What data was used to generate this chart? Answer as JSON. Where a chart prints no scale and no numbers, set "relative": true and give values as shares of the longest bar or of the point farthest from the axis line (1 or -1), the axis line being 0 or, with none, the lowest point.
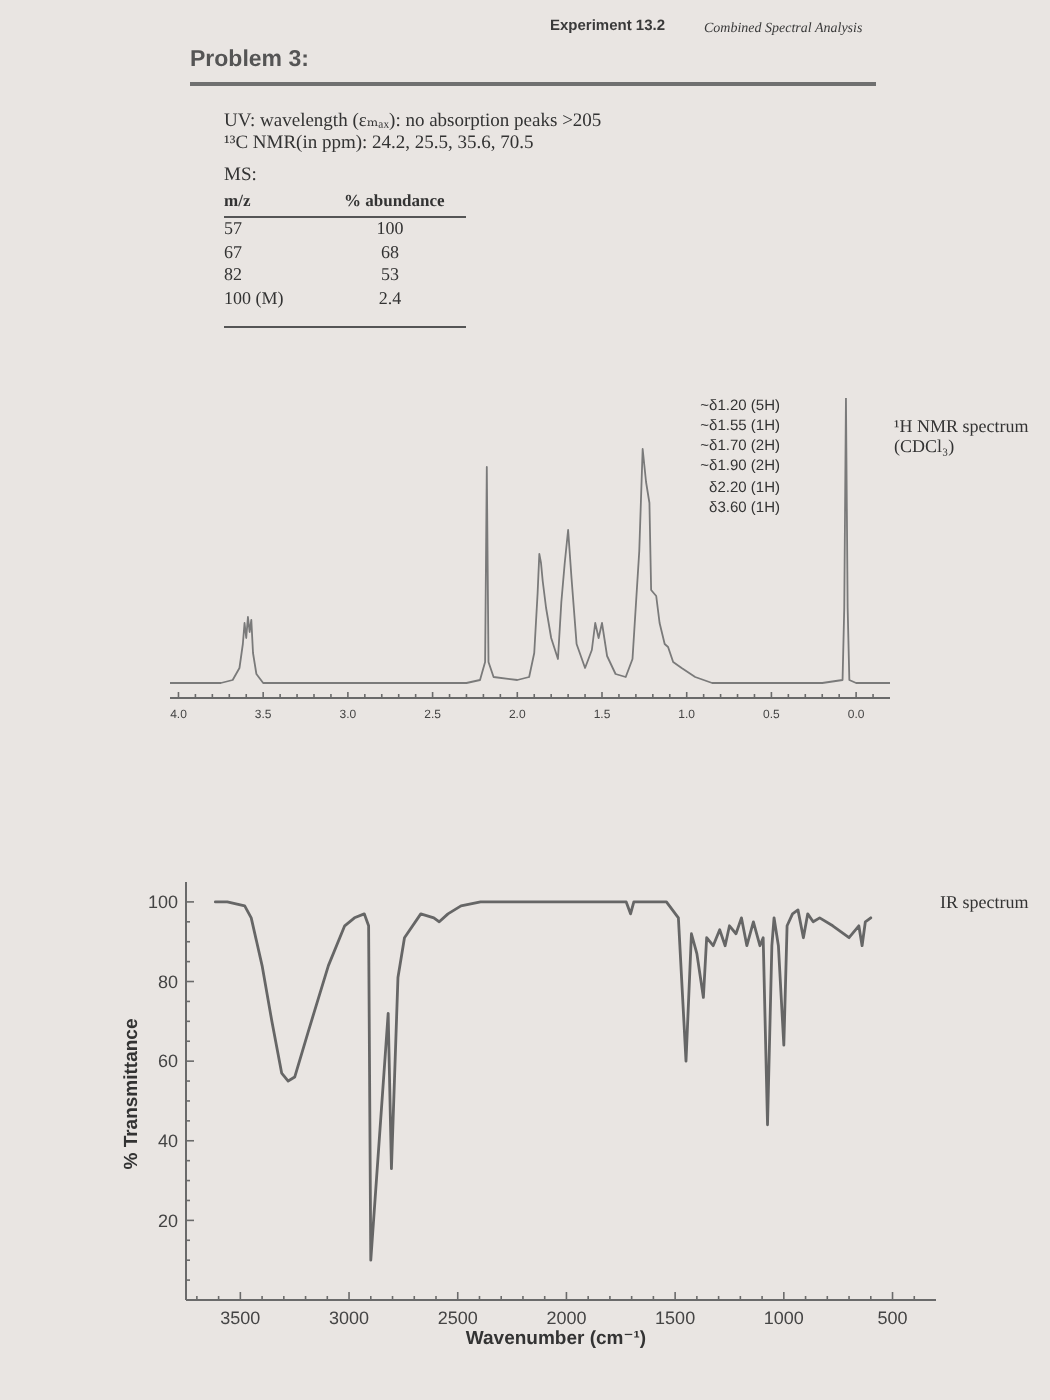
{
  "chart_data": [
    {
      "type": "other",
      "title": "Problem 3:",
      "annotations": [
        "Experiment 13.2",
        "Combined Spectral Analysis",
        "UV: wavelength (εₘₐₓ): no absorption peaks >205",
        "¹³C NMR(in ppm): 24.2, 25.5, 35.6, 70.5"
      ]
    },
    {
      "type": "other",
      "title": "MS:",
      "xlabel": "m/z",
      "ylabel": "% abundance",
      "categories": [
        "57",
        "67",
        "82",
        "100 (M)"
      ],
      "values": [
        100,
        68,
        53,
        2.4
      ],
      "data_labels": true
    },
    {
      "type": "line",
      "relative": true,
      "color": "#7a7a7a",
      "x": [
        4.05,
        3.75,
        3.68,
        3.64,
        3.62,
        3.61,
        3.6,
        3.59,
        3.58,
        3.57,
        3.56,
        3.54,
        3.5,
        3.4,
        2.3,
        2.22,
        2.19,
        2.18,
        2.17,
        2.14,
        2.0,
        1.93,
        1.9,
        1.88,
        1.87,
        1.86,
        1.85,
        1.83,
        1.8,
        1.76,
        1.74,
        1.72,
        1.7,
        1.69,
        1.68,
        1.65,
        1.6,
        1.56,
        1.54,
        1.52,
        1.5,
        1.47,
        1.42,
        1.36,
        1.32,
        1.28,
        1.26,
        1.24,
        1.22,
        1.21,
        1.18,
        1.16,
        1.13,
        1.11,
        1.08,
        1.03,
        0.95,
        0.85,
        0.2,
        0.08,
        0.07,
        0.06,
        0.05,
        0.04,
        0,
        -0.2
      ],
      "values": [
        0.05,
        0.05,
        0.06,
        0.1,
        0.18,
        0.25,
        0.2,
        0.27,
        0.22,
        0.26,
        0.15,
        0.08,
        0.05,
        0.05,
        0.05,
        0.06,
        0.12,
        0.77,
        0.12,
        0.07,
        0.06,
        0.07,
        0.15,
        0.35,
        0.48,
        0.45,
        0.39,
        0.3,
        0.2,
        0.13,
        0.32,
        0.45,
        0.56,
        0.48,
        0.4,
        0.18,
        0.1,
        0.16,
        0.25,
        0.2,
        0.25,
        0.14,
        0.08,
        0.07,
        0.13,
        0.49,
        0.83,
        0.72,
        0.65,
        0.36,
        0.34,
        0.25,
        0.18,
        0.17,
        0.12,
        0.1,
        0.07,
        0.05,
        0.05,
        0.06,
        0.3,
        1,
        0.3,
        0.06,
        0.05,
        0.05
      ],
      "xlim": [
        4.05,
        -0.2
      ],
      "xticks": [
        {
          "value": 4,
          "label": "4.0"
        },
        {
          "value": 3.9,
          "label": null
        },
        {
          "value": 3.8,
          "label": null
        },
        {
          "value": 3.7,
          "label": null
        },
        {
          "value": 3.6,
          "label": null
        },
        {
          "value": 3.5,
          "label": "3.5"
        },
        {
          "value": 3.4,
          "label": null
        },
        {
          "value": 3.3,
          "label": null
        },
        {
          "value": 3.2,
          "label": null
        },
        {
          "value": 3.1,
          "label": null
        },
        {
          "value": 3,
          "label": "3.0"
        },
        {
          "value": 2.9,
          "label": null
        },
        {
          "value": 2.8,
          "label": null
        },
        {
          "value": 2.7,
          "label": null
        },
        {
          "value": 2.6,
          "label": null
        },
        {
          "value": 2.5,
          "label": "2.5"
        },
        {
          "value": 2.4,
          "label": null
        },
        {
          "value": 2.3,
          "label": null
        },
        {
          "value": 2.2,
          "label": null
        },
        {
          "value": 2.1,
          "label": null
        },
        {
          "value": 2,
          "label": "2.0"
        },
        {
          "value": 1.9,
          "label": null
        },
        {
          "value": 1.8,
          "label": null
        },
        {
          "value": 1.7,
          "label": null
        },
        {
          "value": 1.6,
          "label": null
        },
        {
          "value": 1.5,
          "label": "1.5"
        },
        {
          "value": 1.4,
          "label": null
        },
        {
          "value": 1.3,
          "label": null
        },
        {
          "value": 1.2,
          "label": null
        },
        {
          "value": 1.1,
          "label": null
        },
        {
          "value": 1,
          "label": "1.0"
        },
        {
          "value": 0.9,
          "label": null
        },
        {
          "value": 0.8,
          "label": null
        },
        {
          "value": 0.7,
          "label": null
        },
        {
          "value": 0.6,
          "label": null
        },
        {
          "value": 0.5,
          "label": "0.5"
        },
        {
          "value": 0.4,
          "label": null
        },
        {
          "value": 0.3,
          "label": null
        },
        {
          "value": 0.2,
          "label": null
        },
        {
          "value": 0.1,
          "label": null
        },
        {
          "value": 0,
          "label": "0.0"
        },
        {
          "value": -0.1,
          "label": null
        }
      ],
      "annotations": [
        "~δ1.20 (5H)",
        "~δ1.55 (1H)",
        "~δ1.70 (2H)",
        "~δ1.90 (2H)",
        "δ2.20 (1H)",
        "δ3.60 (1H)",
        "¹H NMR spectrum (CDCl₃)"
      ]
    },
    {
      "type": "line",
      "color": "#666666",
      "x": [
        3615,
        3560,
        3480,
        3450,
        3400,
        3355,
        3310,
        3280,
        3250,
        3190,
        3095,
        3020,
        2975,
        2930,
        2910,
        2900,
        2820,
        2805,
        2775,
        2745,
        2670,
        2610,
        2585,
        2545,
        2485,
        2395,
        1750,
        1725,
        1705,
        1690,
        1540,
        1485,
        1450,
        1425,
        1400,
        1370,
        1355,
        1325,
        1295,
        1270,
        1250,
        1220,
        1195,
        1170,
        1140,
        1110,
        1095,
        1075,
        1055,
        1045,
        1025,
        1000,
        985,
        960,
        935,
        910,
        890,
        865,
        835,
        775,
        700,
        655,
        640,
        625,
        600
      ],
      "values": [
        100,
        100,
        99,
        96,
        84,
        70,
        57,
        55,
        56,
        67,
        84,
        94,
        96,
        97,
        94,
        10,
        72,
        33,
        81,
        91,
        97,
        96,
        95,
        97,
        99,
        100,
        100,
        100,
        97,
        100,
        100,
        96,
        60,
        92,
        87,
        76,
        91,
        89,
        93,
        89,
        94,
        92,
        96,
        89,
        95,
        89,
        91,
        44,
        89,
        96,
        89,
        64,
        94,
        97,
        98,
        91,
        97,
        95,
        96,
        94,
        91,
        94,
        89,
        95,
        96
      ],
      "xlim": [
        3750,
        300
      ],
      "xticks": [
        {
          "value": 3700,
          "label": null
        },
        {
          "value": 3600,
          "label": null
        },
        3500,
        {
          "value": 3400,
          "label": null
        },
        {
          "value": 3300,
          "label": null
        },
        {
          "value": 3200,
          "label": null
        },
        {
          "value": 3100,
          "label": null
        },
        3000,
        {
          "value": 2900,
          "label": null
        },
        {
          "value": 2800,
          "label": null
        },
        {
          "value": 2700,
          "label": null
        },
        {
          "value": 2600,
          "label": null
        },
        2500,
        {
          "value": 2400,
          "label": null
        },
        {
          "value": 2300,
          "label": null
        },
        {
          "value": 2200,
          "label": null
        },
        {
          "value": 2100,
          "label": null
        },
        2000,
        {
          "value": 1900,
          "label": null
        },
        {
          "value": 1800,
          "label": null
        },
        {
          "value": 1700,
          "label": null
        },
        {
          "value": 1600,
          "label": null
        },
        1500,
        {
          "value": 1400,
          "label": null
        },
        {
          "value": 1300,
          "label": null
        },
        {
          "value": 1200,
          "label": null
        },
        {
          "value": 1100,
          "label": null
        },
        1000,
        {
          "value": 900,
          "label": null
        },
        {
          "value": 800,
          "label": null
        },
        {
          "value": 700,
          "label": null
        },
        {
          "value": 600,
          "label": null
        },
        500,
        {
          "value": 400,
          "label": null
        }
      ],
      "ylim": [
        0,
        105
      ],
      "yticks": [
        {
          "value": 5,
          "label": null
        },
        {
          "value": 10,
          "label": null
        },
        {
          "value": 15,
          "label": null
        },
        20,
        {
          "value": 25,
          "label": null
        },
        {
          "value": 30,
          "label": null
        },
        {
          "value": 35,
          "label": null
        },
        40,
        {
          "value": 45,
          "label": null
        },
        {
          "value": 50,
          "label": null
        },
        {
          "value": 55,
          "label": null
        },
        60,
        {
          "value": 65,
          "label": null
        },
        {
          "value": 70,
          "label": null
        },
        {
          "value": 75,
          "label": null
        },
        80,
        {
          "value": 85,
          "label": null
        },
        {
          "value": 90,
          "label": null
        },
        {
          "value": 95,
          "label": null
        },
        100
      ],
      "xlabel": "Wavenumber (cm⁻¹)",
      "ylabel": "% Transmittance",
      "annotations": [
        "IR spectrum"
      ]
    }
  ]
}
